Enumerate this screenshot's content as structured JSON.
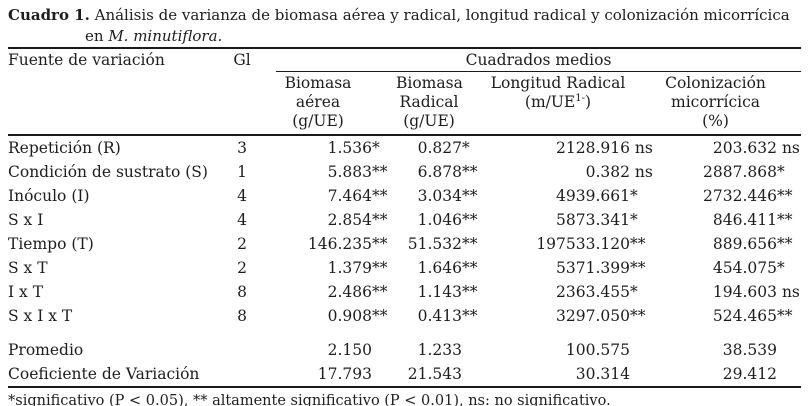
{
  "caption": {
    "label": "Cuadro 1.",
    "line1": "Análisis de varianza de biomasa aérea y radical, longitud radical y colonización micorrícica",
    "line2_prefix": "en ",
    "species": "M. minutiflora."
  },
  "header": {
    "source_col": "Fuente de variación",
    "df_col": "Gl",
    "group": "Cuadrados medios",
    "subcols": [
      {
        "lines": [
          "Biomasa",
          "aérea",
          "(g/UE)"
        ]
      },
      {
        "lines": [
          "Biomasa",
          "Radical",
          "(g/UE)"
        ]
      },
      {
        "lines": [
          "Longitud Radical"
        ],
        "unit": {
          "pre": "(m/UE",
          "sup": "1-",
          "post": ")"
        }
      },
      {
        "lines": [
          "Colonización",
          "micorrícica",
          "(%)"
        ]
      }
    ]
  },
  "rows": [
    {
      "source": "Repetición (R)",
      "gl": "3",
      "cells": [
        {
          "v": "1.536",
          "s": "*"
        },
        {
          "v": "0.827",
          "s": "*"
        },
        {
          "v": "2128.916",
          "s": " ns"
        },
        {
          "v": "203.632",
          "s": " ns"
        }
      ]
    },
    {
      "source": "Condición de sustrato (S)",
      "gl": "1",
      "cells": [
        {
          "v": "5.883",
          "s": "**"
        },
        {
          "v": "6.878",
          "s": "**"
        },
        {
          "v": "0.382",
          "s": " ns"
        },
        {
          "v": "2887.868",
          "s": "*"
        }
      ]
    },
    {
      "source": "Inóculo (I)",
      "gl": "4",
      "cells": [
        {
          "v": "7.464",
          "s": "**"
        },
        {
          "v": "3.034",
          "s": "**"
        },
        {
          "v": "4939.661",
          "s": "*"
        },
        {
          "v": "2732.446",
          "s": "**"
        }
      ]
    },
    {
      "source": "S x I",
      "gl": "4",
      "cells": [
        {
          "v": "2.854",
          "s": "**"
        },
        {
          "v": "1.046",
          "s": "**"
        },
        {
          "v": "5873.341",
          "s": "*"
        },
        {
          "v": "846.411",
          "s": "**"
        }
      ]
    },
    {
      "source": "Tiempo (T)",
      "gl": "2",
      "cells": [
        {
          "v": "146.235",
          "s": "**"
        },
        {
          "v": "51.532",
          "s": "**"
        },
        {
          "v": "197533.120",
          "s": "**"
        },
        {
          "v": "889.656",
          "s": "**"
        }
      ]
    },
    {
      "source": "S x T",
      "gl": "2",
      "cells": [
        {
          "v": "1.379",
          "s": "**"
        },
        {
          "v": "1.646",
          "s": "**"
        },
        {
          "v": "5371.399",
          "s": "**"
        },
        {
          "v": "454.075",
          "s": "*"
        }
      ]
    },
    {
      "source": "I x T",
      "gl": "8",
      "cells": [
        {
          "v": "2.486",
          "s": "**"
        },
        {
          "v": "1.143",
          "s": "**"
        },
        {
          "v": "2363.455",
          "s": "*"
        },
        {
          "v": "194.603",
          "s": " ns"
        }
      ]
    },
    {
      "source": "S x I x T",
      "gl": "8",
      "cells": [
        {
          "v": "0.908",
          "s": "**"
        },
        {
          "v": "0.413",
          "s": "**"
        },
        {
          "v": "3297.050",
          "s": "**"
        },
        {
          "v": "524.465",
          "s": "**"
        }
      ]
    }
  ],
  "summary_rows": [
    {
      "source": "Promedio",
      "gl": "",
      "cells": [
        {
          "v": "2.150",
          "s": ""
        },
        {
          "v": "1.233",
          "s": ""
        },
        {
          "v": "100.575",
          "s": ""
        },
        {
          "v": "38.539",
          "s": ""
        }
      ]
    },
    {
      "source": "Coeficiente de Variación",
      "gl": "",
      "cells": [
        {
          "v": "17.793",
          "s": ""
        },
        {
          "v": "21.543",
          "s": ""
        },
        {
          "v": "30.314",
          "s": ""
        },
        {
          "v": "29.412",
          "s": ""
        }
      ]
    }
  ],
  "footnote": "*significativo (P < 0.05), ** altamente significativo (P < 0.01), ns: no significativo.",
  "colors": {
    "text": "#1d1d1d",
    "rule": "#1a1a1a",
    "background": "#ffffff"
  }
}
